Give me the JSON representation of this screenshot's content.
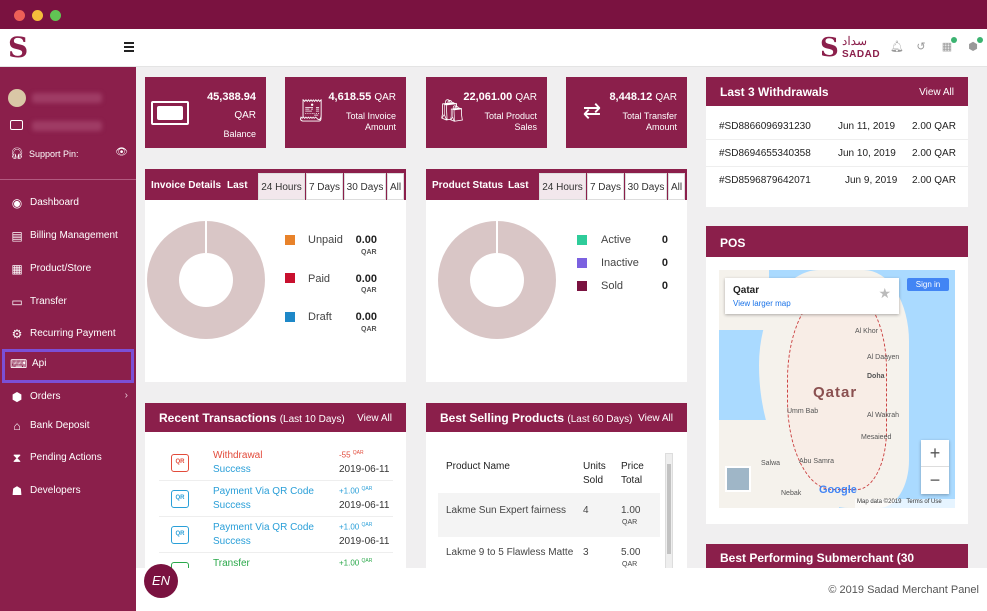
{
  "topbar": {
    "brand_ar": "سداد",
    "brand_en": "SADAD"
  },
  "sidebar": {
    "support_label": "Support Pin: ",
    "items": [
      {
        "label": "Dashboard",
        "icon": "dashboard-icon",
        "glyph": "◉"
      },
      {
        "label": "Billing Management",
        "icon": "billing-icon",
        "glyph": "▤"
      },
      {
        "label": "Product/Store",
        "icon": "store-icon",
        "glyph": "▦"
      },
      {
        "label": "Transfer",
        "icon": "transfer-icon",
        "glyph": "▭"
      },
      {
        "label": "Recurring Payment",
        "icon": "recurring-icon",
        "glyph": "⚙"
      },
      {
        "label": "Api",
        "icon": "api-icon",
        "glyph": "⌨"
      },
      {
        "label": "Orders",
        "icon": "orders-icon",
        "glyph": "⬢"
      },
      {
        "label": "Bank Deposit",
        "icon": "bank-icon",
        "glyph": "⌂"
      },
      {
        "label": "Pending Actions",
        "icon": "hourglass-icon",
        "glyph": "⧗"
      },
      {
        "label": "Developers",
        "icon": "developer-icon",
        "glyph": "☗"
      }
    ],
    "lang_label": "EN"
  },
  "stats": [
    {
      "value": "45,388.94",
      "currency": "QAR",
      "label": "Balance",
      "icon": "money-icon"
    },
    {
      "value": "4,618.55",
      "currency": "QAR",
      "label1": "Total Invoice",
      "label2": "Amount",
      "icon": "invoice-icon"
    },
    {
      "value": "22,061.00",
      "currency": "QAR",
      "label1": "Total Product",
      "label2": "Sales",
      "icon": "product-sales-icon"
    },
    {
      "value": "8,448.12",
      "currency": "QAR",
      "label1": "Total Transfer",
      "label2": "Amount",
      "icon": "transfer-amount-icon"
    }
  ],
  "invoice_details": {
    "title": "Invoice Details",
    "last": "Last",
    "tabs": [
      "24 Hours",
      "7 Days",
      "30 Days",
      "All"
    ],
    "legend": [
      {
        "label": "Unpaid",
        "value": "0.00",
        "currency": "QAR",
        "color": "#e8822a"
      },
      {
        "label": "Paid",
        "value": "0.00",
        "currency": "QAR",
        "color": "#c8102e"
      },
      {
        "label": "Draft",
        "value": "0.00",
        "currency": "QAR",
        "color": "#1e88c8"
      }
    ]
  },
  "product_status": {
    "title": "Product Status",
    "last": "Last",
    "tabs": [
      "24 Hours",
      "7 Days",
      "30 Days",
      "All"
    ],
    "legend": [
      {
        "label": "Active",
        "value": "0",
        "color": "#2ecc9a"
      },
      {
        "label": "Inactive",
        "value": "0",
        "color": "#7b61e0"
      },
      {
        "label": "Sold",
        "value": "0",
        "color": "#7a1240"
      }
    ]
  },
  "withdrawals": {
    "title": "Last 3 Withdrawals",
    "view_all": "View All",
    "rows": [
      {
        "id": "#SD8866096931230",
        "date": "Jun 11, 2019",
        "amount": "2.00 QAR"
      },
      {
        "id": "#SD8694655340358",
        "date": "Jun 10, 2019",
        "amount": "2.00 QAR"
      },
      {
        "id": "#SD8596879642071",
        "date": "Jun 9, 2019",
        "amount": "2.00 QAR"
      }
    ]
  },
  "pos": {
    "title": "POS",
    "popup_title": "Qatar",
    "popup_link": "View larger map",
    "signin": "Sign in",
    "country": "Qatar",
    "labels": [
      "Doha",
      "Al Wakrah",
      "Mesaieed",
      "Umm Bab",
      "Salwa",
      "Nebak",
      "Abu Samra",
      "Al Khor",
      "Al Daayen"
    ],
    "map_data": "Map data ©2019",
    "terms": "Terms of Use",
    "google": "Google"
  },
  "recent_transactions": {
    "title": "Recent Transactions",
    "subtitle": "(Last 10 Days)",
    "view_all": "View All",
    "rows": [
      {
        "type": "Withdrawal",
        "status": "Success",
        "amount": "-55",
        "currency": "QAR",
        "date": "2019-06-11",
        "color": "#e24b3b",
        "icon": "withdrawal-icon"
      },
      {
        "type": "Payment Via QR Code",
        "status": "Success",
        "amount": "+1.00",
        "currency": "QAR",
        "date": "2019-06-11",
        "color": "#2a9fd8",
        "icon": "qr-payment-icon"
      },
      {
        "type": "Payment Via QR Code",
        "status": "Success",
        "amount": "+1.00",
        "currency": "QAR",
        "date": "2019-06-11",
        "color": "#2a9fd8",
        "icon": "qr-payment-icon"
      },
      {
        "type": "Transfer",
        "status": "",
        "amount": "+1.00",
        "currency": "QAR",
        "date": "",
        "color": "#2aa84a",
        "icon": "transfer-icon"
      }
    ]
  },
  "best_selling": {
    "title": "Best Selling Products",
    "subtitle": "(Last 60 Days)",
    "view_all": "View All",
    "headers": {
      "name": "Product Name",
      "units1": "Units",
      "units2": "Sold",
      "price1": "Price",
      "price2": "Total"
    },
    "rows": [
      {
        "name": "Lakme Sun Expert fairness",
        "units": "4",
        "price": "1.00",
        "currency": "QAR"
      },
      {
        "name": "Lakme 9 to 5 Flawless Matte",
        "units": "3",
        "price": "5.00",
        "currency": "QAR"
      }
    ]
  },
  "best_performing": {
    "title": "Best Performing Submerchant (30"
  },
  "footer": {
    "copyright": "© 2019 Sadad Merchant Panel"
  }
}
